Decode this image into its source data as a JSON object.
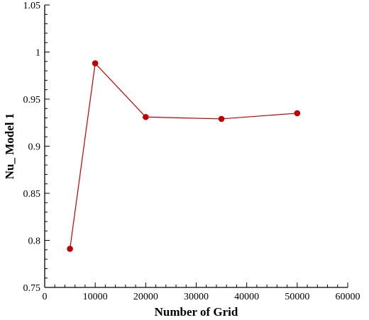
{
  "chart_data": {
    "type": "line",
    "title": "",
    "xlabel": "Number of Grid",
    "ylabel": "Nu_ Model 1",
    "xlim": [
      0,
      60000
    ],
    "ylim": [
      0.75,
      1.05
    ],
    "x_ticks": [
      "0",
      "10000",
      "20000",
      "30000",
      "40000",
      "50000",
      "60000"
    ],
    "y_ticks": [
      "0.75",
      "0.8",
      "0.85",
      "0.9",
      "0.95",
      "1",
      "1.05"
    ],
    "grid": false,
    "legend": "none",
    "series": [
      {
        "color": "#c00000",
        "marker": "circle",
        "x": [
          5000,
          10000,
          20000,
          35000,
          50000
        ],
        "y": [
          0.791,
          0.988,
          0.931,
          0.929,
          0.935
        ]
      }
    ]
  }
}
